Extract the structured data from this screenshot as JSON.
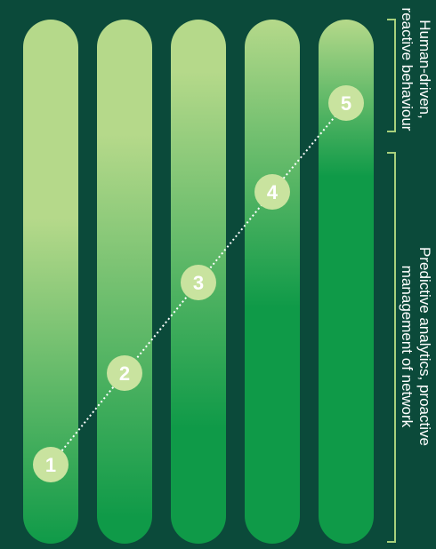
{
  "stages": [
    {
      "number": "1",
      "level": 1
    },
    {
      "number": "2",
      "level": 2
    },
    {
      "number": "3",
      "level": 3
    },
    {
      "number": "4",
      "level": 4
    },
    {
      "number": "5",
      "level": 5
    }
  ],
  "labels": {
    "top": "Human-driven,\nreactive behaviour",
    "bottom": "Predictive analytics, proactive\nmanagement of network"
  },
  "colors": {
    "background": "#0b4a3a",
    "pill_light": "#b5d98a",
    "pill_dark": "#0f9a48",
    "marker_fill": "#c9e39f",
    "marker_text": "#ffffff",
    "bracket": "#a8d17c",
    "connector": "#ffffff"
  }
}
